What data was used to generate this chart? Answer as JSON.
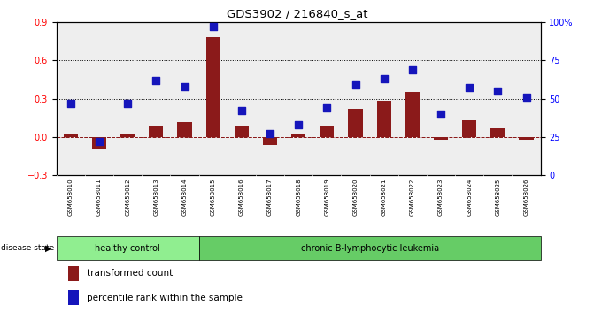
{
  "title": "GDS3902 / 216840_s_at",
  "samples": [
    "GSM658010",
    "GSM658011",
    "GSM658012",
    "GSM658013",
    "GSM658014",
    "GSM658015",
    "GSM658016",
    "GSM658017",
    "GSM658018",
    "GSM658019",
    "GSM658020",
    "GSM658021",
    "GSM658022",
    "GSM658023",
    "GSM658024",
    "GSM658025",
    "GSM658026"
  ],
  "transformed_count": [
    0.02,
    -0.1,
    0.02,
    0.08,
    0.12,
    0.78,
    0.09,
    -0.06,
    0.03,
    0.08,
    0.22,
    0.28,
    0.35,
    -0.02,
    0.13,
    0.07,
    -0.02
  ],
  "percentile_rank": [
    47,
    22,
    47,
    62,
    58,
    97,
    42,
    27,
    33,
    44,
    59,
    63,
    69,
    40,
    57,
    55,
    51
  ],
  "bar_color": "#8B1A1A",
  "dot_color": "#1515BB",
  "ylim_left": [
    -0.3,
    0.9
  ],
  "ylim_right": [
    0,
    100
  ],
  "yticks_left": [
    -0.3,
    0.0,
    0.3,
    0.6,
    0.9
  ],
  "yticks_right": [
    0,
    25,
    50,
    75,
    100
  ],
  "ytick_labels_right": [
    "0",
    "25",
    "50",
    "75",
    "100%"
  ],
  "healthy_label": "healthy control",
  "leukemia_label": "chronic B-lymphocytic leukemia",
  "disease_state_label": "disease state",
  "legend_transformed": "transformed count",
  "legend_percentile": "percentile rank within the sample",
  "bar_width": 0.5,
  "dot_size": 35,
  "panel_bg": "#eeeeee",
  "healthy_bg": "#90EE90",
  "leukemia_bg": "#66CC66",
  "tick_bg": "#cccccc",
  "healthy_n": 5,
  "total_n": 17
}
